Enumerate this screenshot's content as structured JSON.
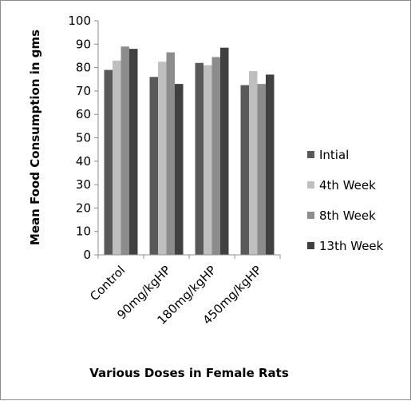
{
  "chart_data": {
    "type": "bar",
    "title": "",
    "xlabel": "Various Doses in Female Rats",
    "ylabel": "Mean Food Consumption in gms",
    "ylim": [
      0,
      100
    ],
    "yticks": [
      "0",
      "10",
      "20",
      "30",
      "40",
      "50",
      "60",
      "70",
      "80",
      "90",
      "100"
    ],
    "categories": [
      "Control",
      "90mg/kgHP",
      "180mg/kgHP",
      "450mg/kgHP"
    ],
    "series": [
      {
        "name": "Intial",
        "color": "#595959",
        "values": [
          79,
          76,
          82,
          72.5
        ]
      },
      {
        "name": "4th Week",
        "color": "#bfbfbf",
        "values": [
          83,
          82.5,
          81,
          78.5
        ]
      },
      {
        "name": "8th Week",
        "color": "#8c8c8c",
        "values": [
          89,
          86.5,
          84.5,
          73
        ]
      },
      {
        "name": "13th Week",
        "color": "#404040",
        "values": [
          88,
          73,
          88.5,
          77
        ]
      }
    ],
    "grid": false,
    "legend": "right"
  }
}
